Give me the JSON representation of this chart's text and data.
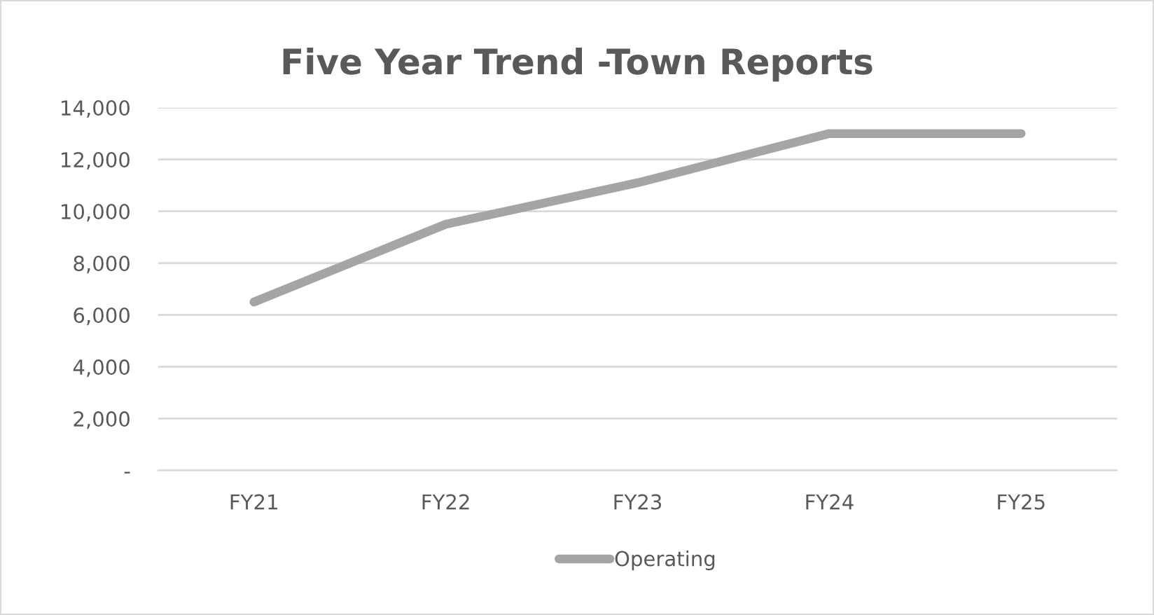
{
  "chart_data": {
    "type": "line",
    "title": "Five Year Trend -Town Reports",
    "categories": [
      "FY21",
      "FY22",
      "FY23",
      "FY24",
      "FY25"
    ],
    "series": [
      {
        "name": "Operating",
        "color": "#a5a5a5",
        "values": [
          6500,
          9500,
          11100,
          13000,
          13000
        ]
      }
    ],
    "ylim": [
      0,
      14000
    ],
    "yticks": [
      {
        "value": 0,
        "label": "-"
      },
      {
        "value": 2000,
        "label": "2,000"
      },
      {
        "value": 4000,
        "label": "4,000"
      },
      {
        "value": 6000,
        "label": "6,000"
      },
      {
        "value": 8000,
        "label": "8,000"
      },
      {
        "value": 10000,
        "label": "10,000"
      },
      {
        "value": 12000,
        "label": "12,000"
      },
      {
        "value": 14000,
        "label": "14,000"
      }
    ],
    "grid": "y",
    "legend": "bottom",
    "marker": "none",
    "line_style": "solid"
  }
}
